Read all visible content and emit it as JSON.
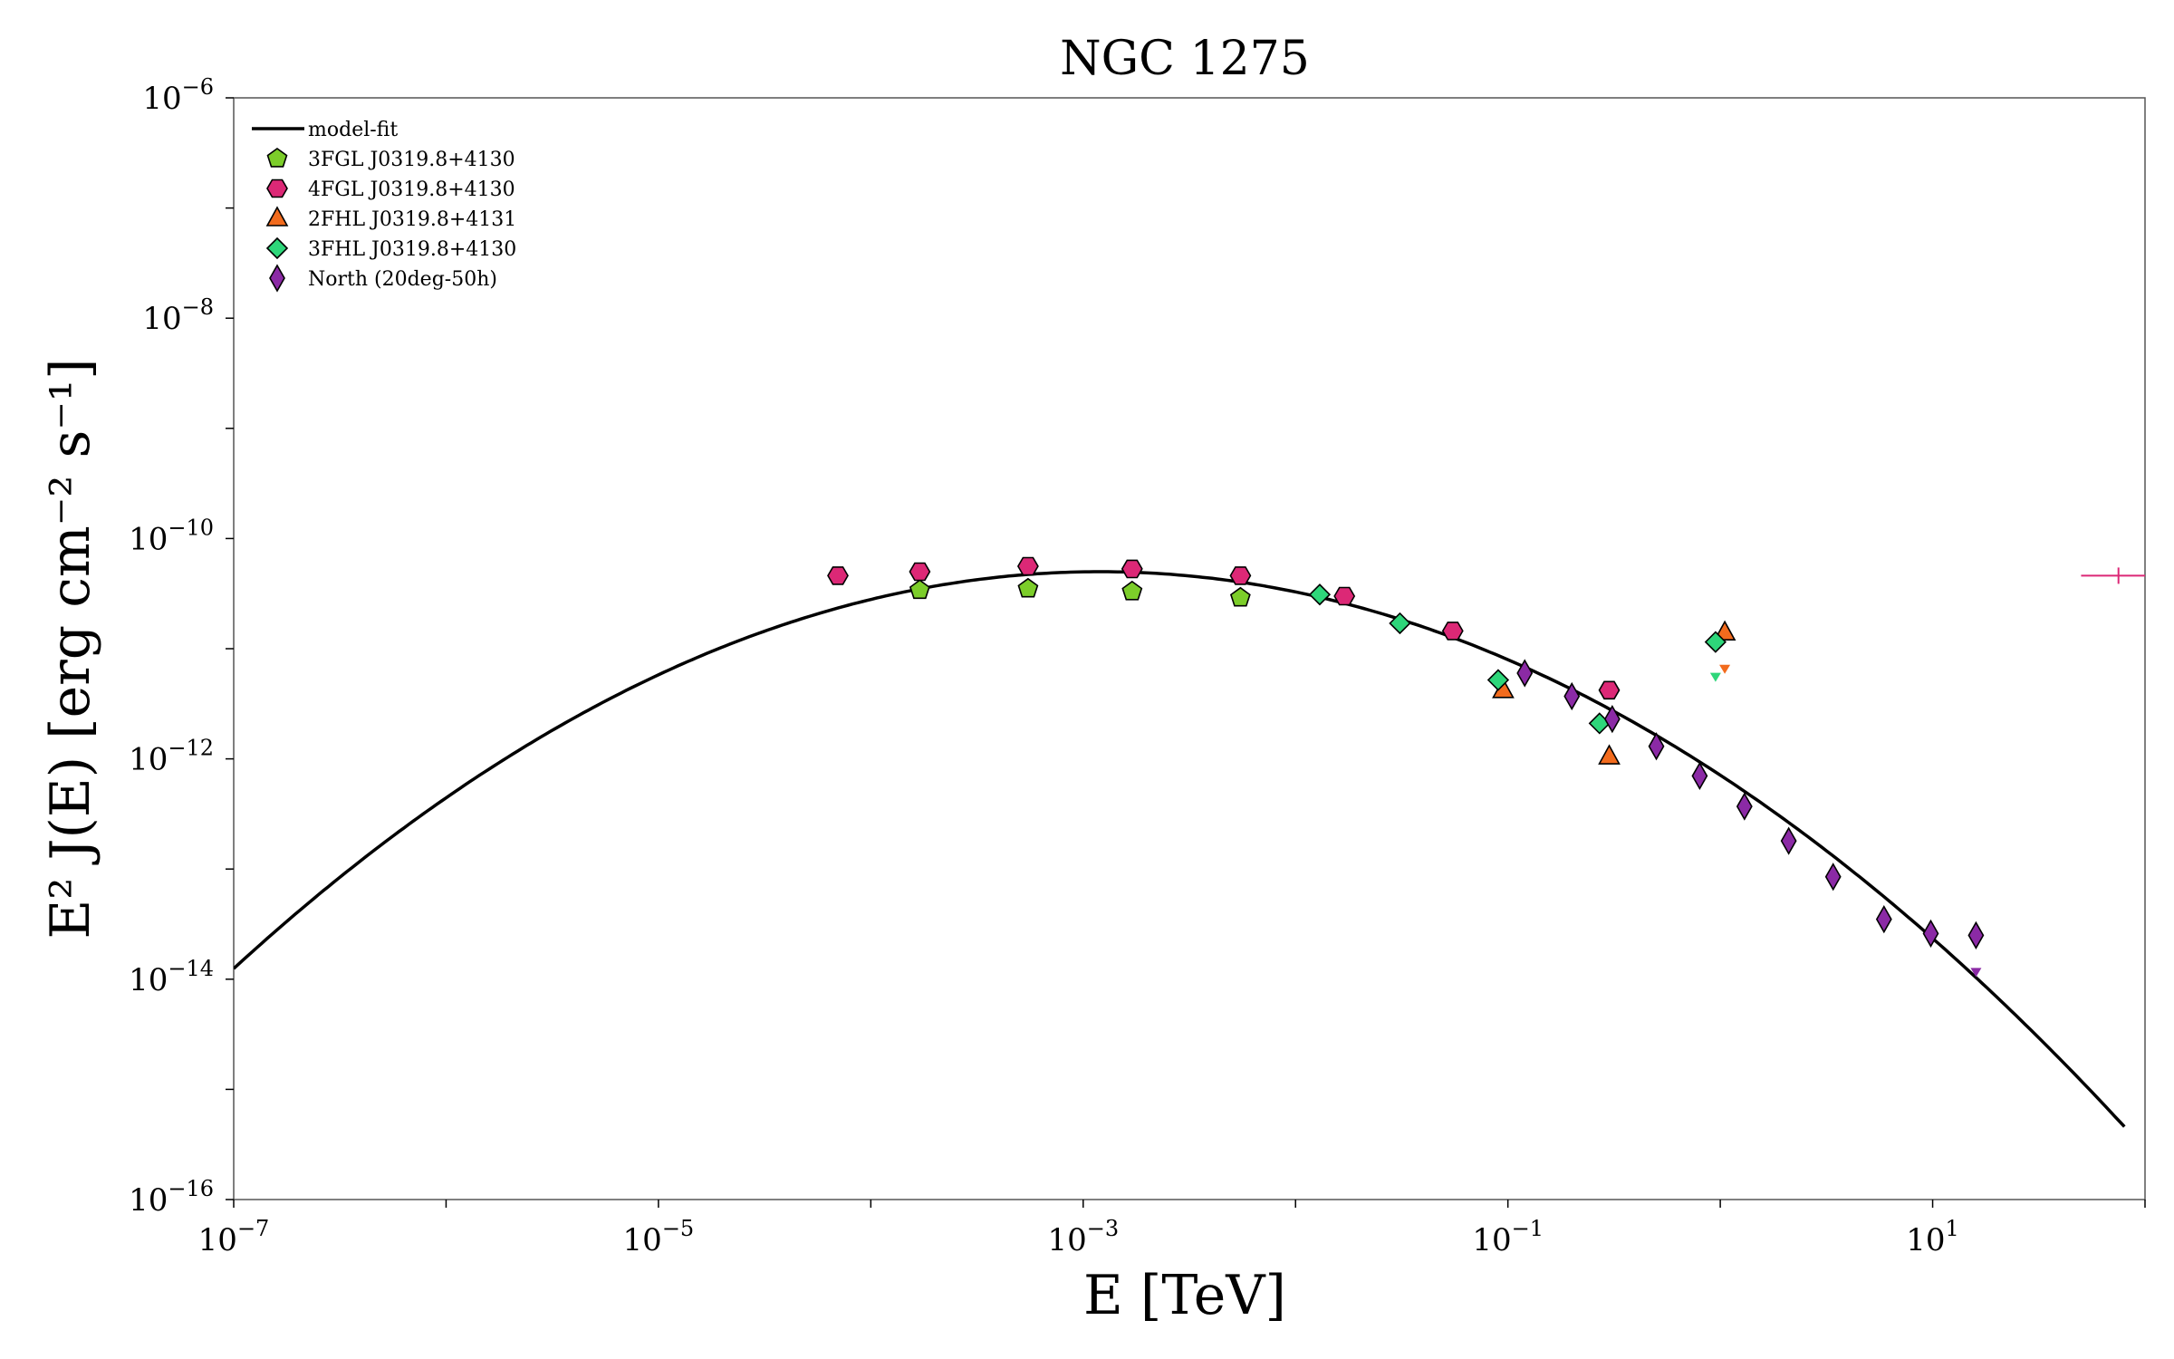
{
  "chart_data": {
    "type": "scatter",
    "title": "NGC 1275",
    "xlabel": "E [TeV]",
    "ylabel": "E² J(E) [erg cm⁻² s⁻¹]",
    "xscale": "log",
    "yscale": "log",
    "xlim": [
      1e-07,
      100
    ],
    "ylim": [
      1e-16,
      1e-06
    ],
    "x_tick_exponents": [
      -7,
      -5,
      -3,
      -1,
      1
    ],
    "y_tick_exponents": [
      -16,
      -14,
      -12,
      -10,
      -8,
      -6
    ],
    "grid": false,
    "legend_position": "top-left",
    "model": {
      "name": "model-fit",
      "color": "#000000",
      "peak_x": 0.0012,
      "peak_y": 5e-11,
      "log_curvature": 0.2165,
      "x_range": [
        1e-07,
        80
      ]
    },
    "series": [
      {
        "name": "3FGL J0319.8+4130",
        "marker": "pentagon",
        "color": "#7ccd2a",
        "x": [
          0.00017,
          0.00055,
          0.0017,
          0.0055
        ],
        "y": [
          3.4e-11,
          3.5e-11,
          3.3e-11,
          2.9e-11
        ]
      },
      {
        "name": "4FGL J0319.8+4130",
        "marker": "hexagon",
        "color": "#dc2876",
        "x": [
          7e-05,
          0.00017,
          0.00055,
          0.0017,
          0.0055,
          0.017,
          0.055,
          0.3
        ],
        "y": [
          4.6e-11,
          5e-11,
          5.6e-11,
          5.3e-11,
          4.6e-11,
          3e-11,
          1.45e-11,
          4.2e-12
        ]
      },
      {
        "name": "2FHL J0319.8+4131",
        "marker": "triangle",
        "color": "#f26b1d",
        "x": [
          0.095,
          0.3,
          1.05
        ],
        "y": [
          4.2e-12,
          1.05e-12,
          1.4e-11
        ],
        "upper_limits": [
          {
            "x": 1.05,
            "y": 6.5e-12
          }
        ]
      },
      {
        "name": "3FHL J0319.8+4130",
        "marker": "diamond",
        "color": "#2ed67a",
        "x": [
          0.013,
          0.031,
          0.09,
          0.27,
          0.95
        ],
        "y": [
          3.1e-11,
          1.7e-11,
          5.2e-12,
          2.1e-12,
          1.15e-11
        ],
        "upper_limits": [
          {
            "x": 0.95,
            "y": 5.5e-12
          }
        ]
      },
      {
        "name": "North (20deg-50h)",
        "marker": "thin_diamond",
        "color": "#8b2aa5",
        "x": [
          0.12,
          0.2,
          0.31,
          0.5,
          0.8,
          1.3,
          2.1,
          3.4,
          5.9,
          9.8,
          16
        ],
        "y": [
          6e-12,
          3.7e-12,
          2.3e-12,
          1.3e-12,
          7e-13,
          3.7e-13,
          1.8e-13,
          8.5e-14,
          3.5e-14,
          2.6e-14,
          2.5e-14
        ],
        "upper_limits": [
          {
            "x": 16,
            "y": 1.15e-14
          }
        ]
      }
    ],
    "annotations": [
      {
        "type": "errorbar",
        "color": "#dc2876",
        "x": 75,
        "y": 4.6e-11,
        "xerr": [
          50,
          100
        ]
      }
    ]
  }
}
